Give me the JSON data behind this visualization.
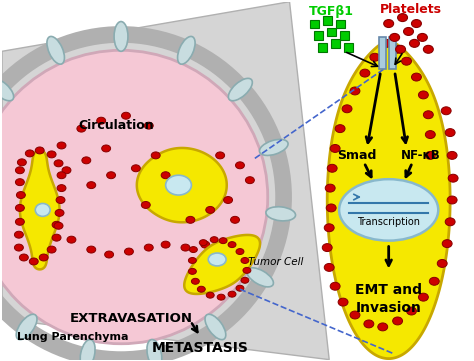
{
  "bg_color": "#ffffff",
  "vessel_outer_color": "#d0d0d0",
  "vessel_wall_color": "#b8b8b8",
  "lumen_color": "#f5c8d5",
  "endocell_fc": "#c8dde0",
  "endocell_ec": "#8aacb0",
  "tumor_cell_color": "#f5e800",
  "tumor_cell_ec": "#c8a800",
  "platelet_color": "#cc0000",
  "platelet_ec": "#880000",
  "tgf_color": "#00cc00",
  "tgf_ec": "#007700",
  "nucleus_color": "#c8e8f0",
  "nucleus_border": "#88b8cc",
  "arrow_color": "#000000",
  "dashed_color": "#4466cc",
  "text_circulation": "Circulation",
  "text_lung": "Lung Parenchyma",
  "text_tumor_cell": "Tumor Cell",
  "text_extravasation": "EXTRAVASATION",
  "text_metastasis": "METASTASIS",
  "text_smad": "Smad",
  "text_nfkb": "NF-κB",
  "text_transcription": "Transcription",
  "text_emt": "EMT and\nInvasion",
  "text_tgf": "TGFβ1",
  "text_platelets": "Platelets",
  "receptor_fc": "#aaccdd",
  "receptor_ec": "#6688aa"
}
